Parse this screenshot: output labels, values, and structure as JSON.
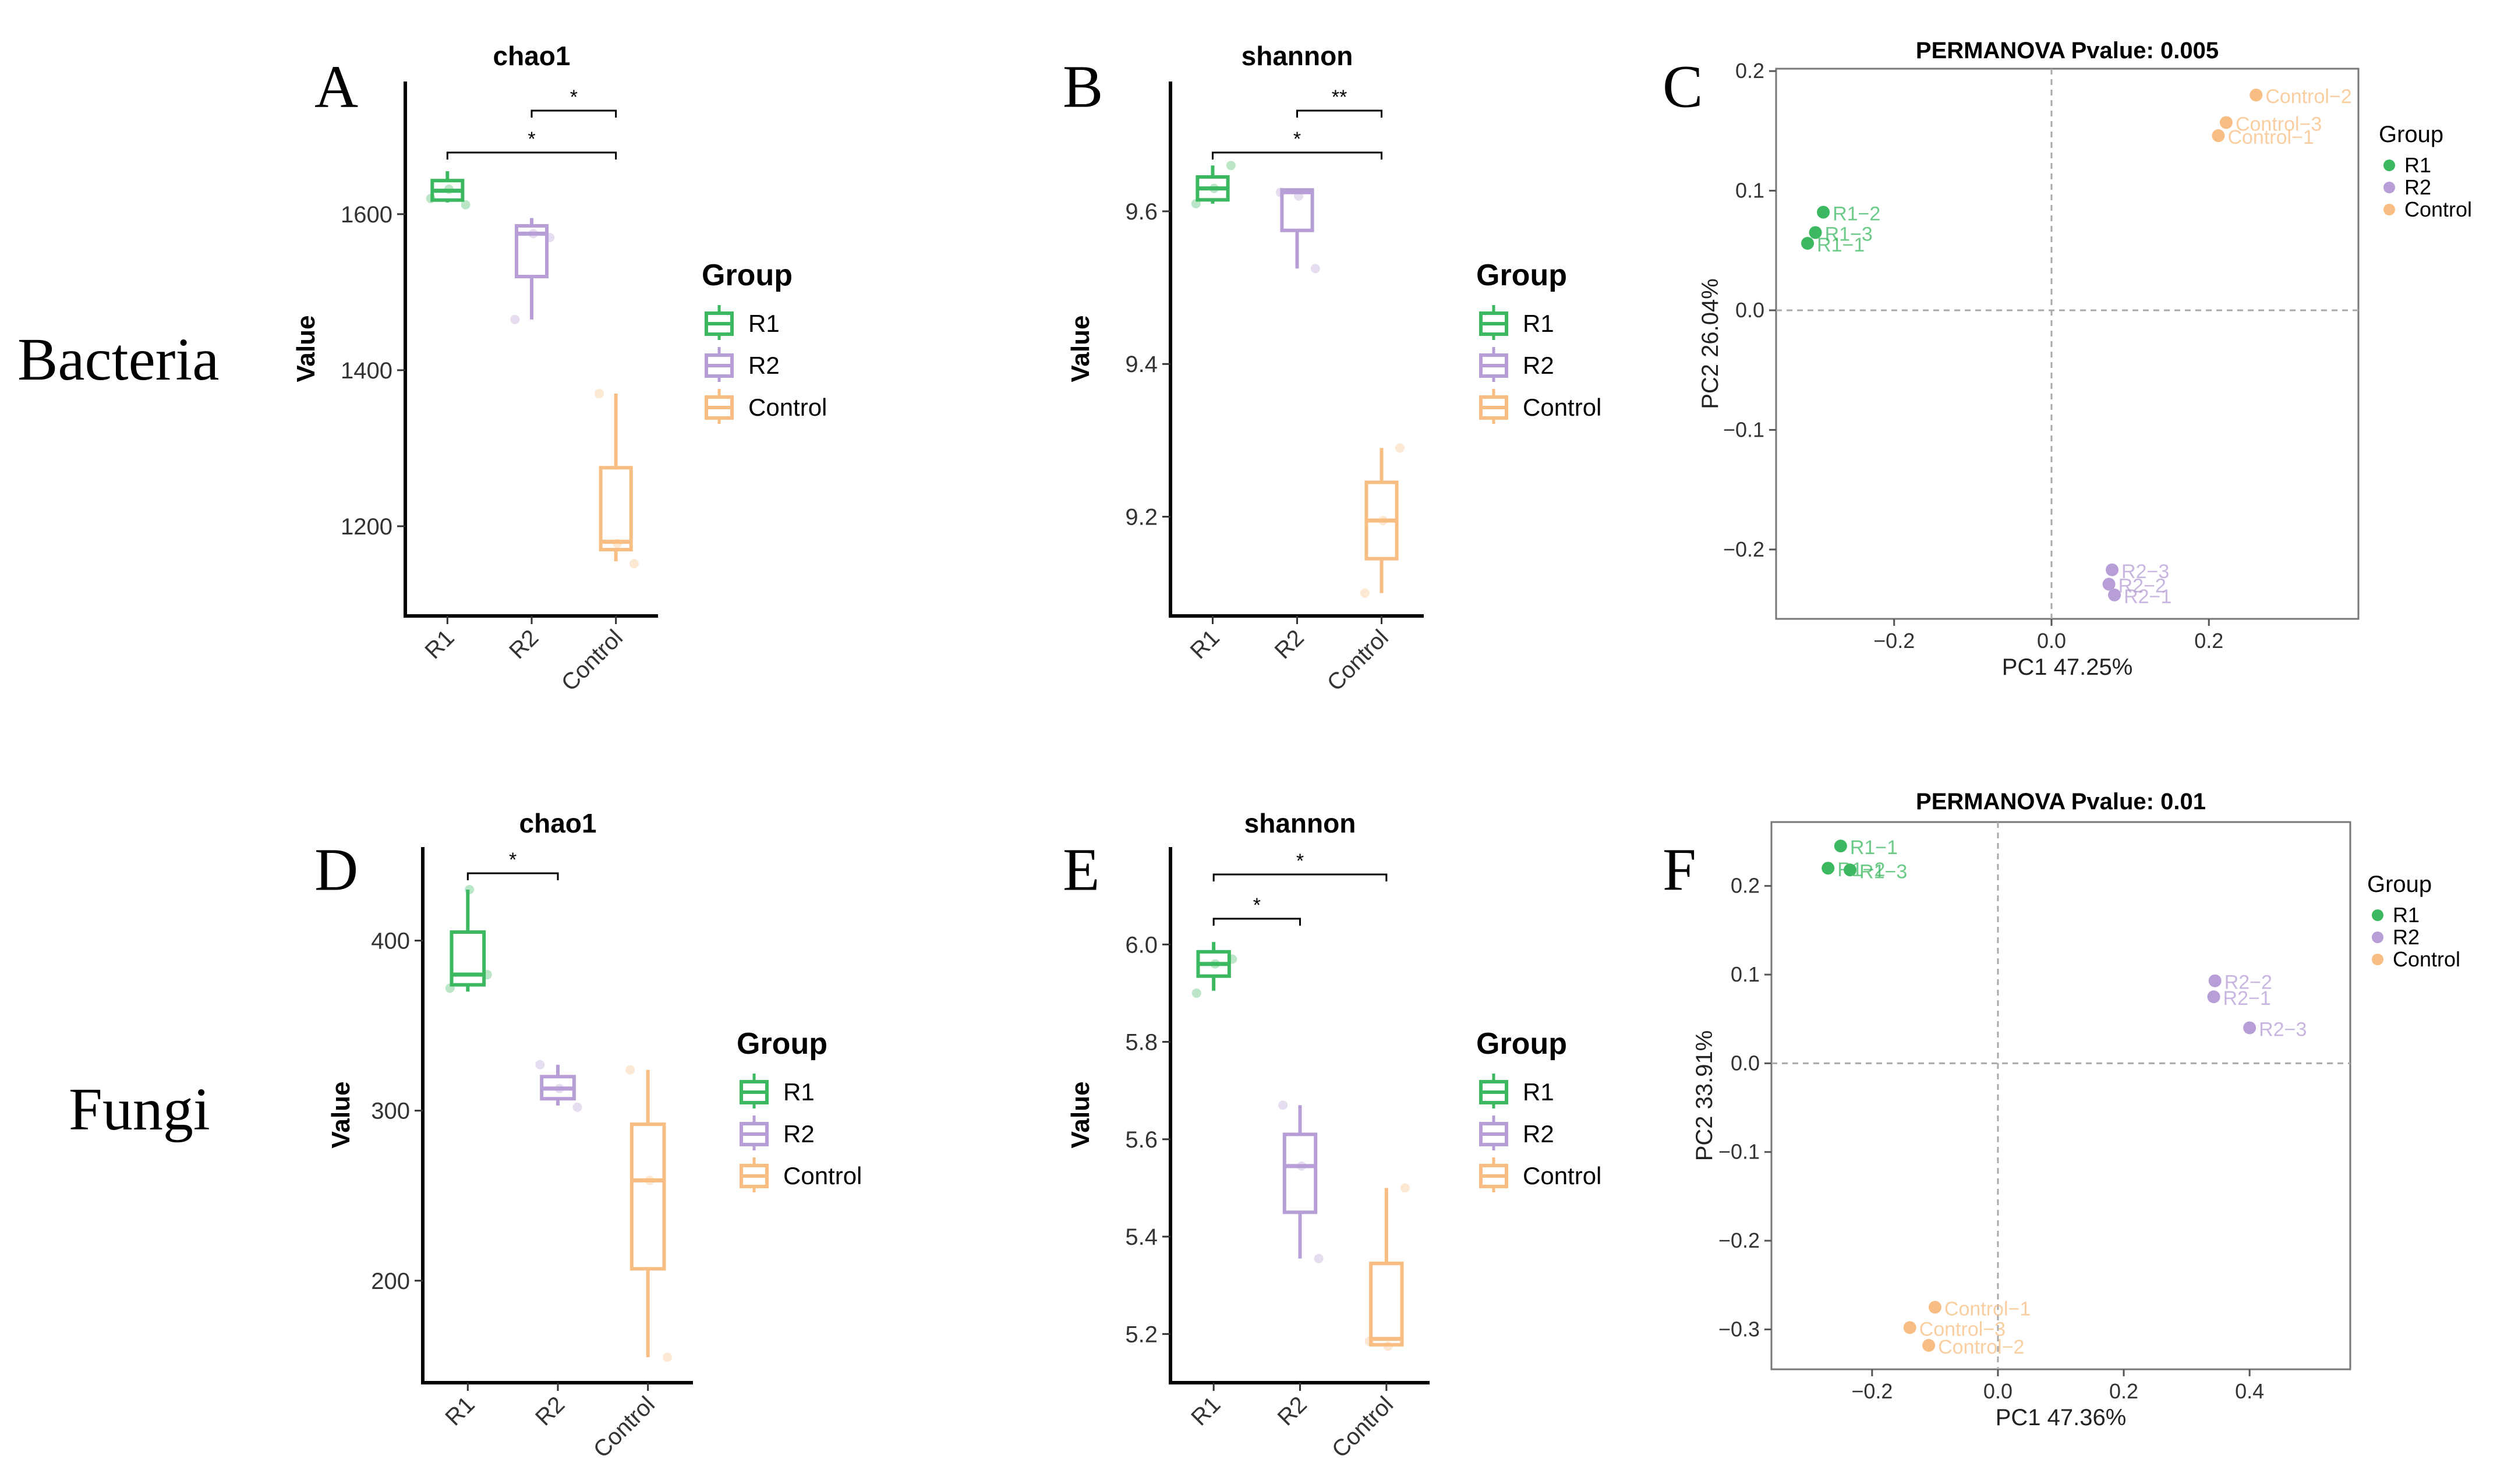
{
  "figure": {
    "row_labels": [
      "Bacteria",
      "Fungi"
    ],
    "group_colors": {
      "R1": "#3CB860",
      "R2": "#B79ED6",
      "Control": "#F7BD82"
    },
    "legend_title": "Group",
    "groups": [
      "R1",
      "R2",
      "Control"
    ]
  },
  "chart_data": [
    {
      "panel": "A",
      "type": "box",
      "title": "chao1",
      "ylabel": "Value",
      "xlabel": "",
      "categories": [
        "R1",
        "R2",
        "Control"
      ],
      "ylim": [
        1085,
        1770
      ],
      "yticks": [
        1200,
        1400,
        1600
      ],
      "boxes": [
        {
          "group": "R1",
          "min": 1615,
          "q1": 1618,
          "median": 1630,
          "q3": 1643,
          "max": 1655
        },
        {
          "group": "R2",
          "min": 1465,
          "q1": 1520,
          "median": 1575,
          "q3": 1585,
          "max": 1595
        },
        {
          "group": "Control",
          "min": 1155,
          "q1": 1170,
          "median": 1180,
          "q3": 1275,
          "max": 1370
        }
      ],
      "points": [
        {
          "group": "R1",
          "values": [
            1620,
            1632,
            1612
          ]
        },
        {
          "group": "R2",
          "values": [
            1465,
            1575,
            1570
          ]
        },
        {
          "group": "Control",
          "values": [
            1370,
            1178,
            1152
          ]
        }
      ],
      "significance": [
        {
          "from": "R2",
          "to": "Control",
          "label": "*"
        },
        {
          "from": "R1",
          "to": "Control",
          "label": "*"
        }
      ]
    },
    {
      "panel": "B",
      "type": "box",
      "title": "shannon",
      "ylabel": "Value",
      "xlabel": "",
      "categories": [
        "R1",
        "R2",
        "Control"
      ],
      "ylim": [
        9.07,
        9.77
      ],
      "yticks": [
        9.2,
        9.4,
        9.6
      ],
      "boxes": [
        {
          "group": "R1",
          "min": 9.61,
          "q1": 9.615,
          "median": 9.63,
          "q3": 9.645,
          "max": 9.66
        },
        {
          "group": "R2",
          "min": 9.525,
          "q1": 9.575,
          "median": 9.625,
          "q3": 9.628,
          "max": 9.63
        },
        {
          "group": "Control",
          "min": 9.1,
          "q1": 9.145,
          "median": 9.195,
          "q3": 9.245,
          "max": 9.29
        }
      ],
      "points": [
        {
          "group": "R1",
          "values": [
            9.61,
            9.63,
            9.66
          ]
        },
        {
          "group": "R2",
          "values": [
            9.625,
            9.62,
            9.525
          ]
        },
        {
          "group": "Control",
          "values": [
            9.1,
            9.195,
            9.29
          ]
        }
      ],
      "significance": [
        {
          "from": "R2",
          "to": "Control",
          "label": "**"
        },
        {
          "from": "R1",
          "to": "Control",
          "label": "*"
        }
      ]
    },
    {
      "panel": "C",
      "type": "scatter",
      "title": "PERMANOVA Pvalue: 0.005",
      "xlabel": "PC1 47.25%",
      "ylabel": "PC2 26.04%",
      "xlim": [
        -0.35,
        0.39
      ],
      "ylim": [
        -0.258,
        0.202
      ],
      "xticks": [
        -0.2,
        0.0,
        0.2
      ],
      "yticks": [
        -0.2,
        -0.1,
        0.0,
        0.1,
        0.2
      ],
      "xtick_labels": [
        "−0.2",
        "0.0",
        "0.2"
      ],
      "ytick_labels": [
        "−0.2",
        "−0.1",
        "0.0",
        "0.1",
        "0.2"
      ],
      "points": [
        {
          "group": "R1",
          "label": "R1−2",
          "x": -0.29,
          "y": 0.082
        },
        {
          "group": "R1",
          "label": "R1−3",
          "x": -0.3,
          "y": 0.065
        },
        {
          "group": "R1",
          "label": "R1−1",
          "x": -0.31,
          "y": 0.056
        },
        {
          "group": "R2",
          "label": "R2−3",
          "x": 0.077,
          "y": -0.217
        },
        {
          "group": "R2",
          "label": "R2−2",
          "x": 0.073,
          "y": -0.229
        },
        {
          "group": "R2",
          "label": "R2−1",
          "x": 0.08,
          "y": -0.238
        },
        {
          "group": "Control",
          "label": "Control−2",
          "x": 0.26,
          "y": 0.18
        },
        {
          "group": "Control",
          "label": "Control−3",
          "x": 0.222,
          "y": 0.157
        },
        {
          "group": "Control",
          "label": "Control−1",
          "x": 0.212,
          "y": 0.146
        }
      ]
    },
    {
      "panel": "D",
      "type": "box",
      "title": "chao1",
      "ylabel": "Value",
      "xlabel": "",
      "categories": [
        "R1",
        "R2",
        "Control"
      ],
      "ylim": [
        140,
        455
      ],
      "yticks": [
        200,
        300,
        400
      ],
      "boxes": [
        {
          "group": "R1",
          "min": 370,
          "q1": 374,
          "median": 380,
          "q3": 405,
          "max": 430
        },
        {
          "group": "R2",
          "min": 303,
          "q1": 307,
          "median": 313,
          "q3": 320,
          "max": 327
        },
        {
          "group": "Control",
          "min": 155,
          "q1": 207,
          "median": 259,
          "q3": 292,
          "max": 324
        }
      ],
      "points": [
        {
          "group": "R1",
          "values": [
            372,
            430,
            380
          ]
        },
        {
          "group": "R2",
          "values": [
            327,
            313,
            302
          ]
        },
        {
          "group": "Control",
          "values": [
            324,
            259,
            155
          ]
        }
      ],
      "significance": [
        {
          "from": "R1",
          "to": "R2",
          "label": "*"
        }
      ]
    },
    {
      "panel": "E",
      "type": "box",
      "title": "shannon",
      "ylabel": "Value",
      "xlabel": "",
      "categories": [
        "R1",
        "R2",
        "Control"
      ],
      "ylim": [
        5.1,
        6.2
      ],
      "yticks": [
        5.2,
        5.4,
        5.6,
        5.8,
        6.0
      ],
      "boxes": [
        {
          "group": "R1",
          "min": 5.905,
          "q1": 5.935,
          "median": 5.96,
          "q3": 5.985,
          "max": 6.005
        },
        {
          "group": "R2",
          "min": 5.355,
          "q1": 5.45,
          "median": 5.545,
          "q3": 5.61,
          "max": 5.67
        },
        {
          "group": "Control",
          "min": 5.175,
          "q1": 5.178,
          "median": 5.19,
          "q3": 5.345,
          "max": 5.5
        }
      ],
      "points": [
        {
          "group": "R1",
          "values": [
            5.9,
            5.96,
            5.97
          ]
        },
        {
          "group": "R2",
          "values": [
            5.67,
            5.545,
            5.355
          ]
        },
        {
          "group": "Control",
          "values": [
            5.185,
            5.175,
            5.5
          ]
        }
      ],
      "significance": [
        {
          "from": "R1",
          "to": "R2",
          "label": "*"
        },
        {
          "from": "R1",
          "to": "Control",
          "label": "*"
        }
      ]
    },
    {
      "panel": "F",
      "type": "scatter",
      "title": "PERMANOVA Pvalue: 0.01",
      "xlabel": "PC1 47.36%",
      "ylabel": "PC2 33.91%",
      "xlim": [
        -0.36,
        0.56
      ],
      "ylim": [
        -0.345,
        0.272
      ],
      "xticks": [
        -0.2,
        0.0,
        0.2,
        0.4
      ],
      "yticks": [
        -0.3,
        -0.2,
        -0.1,
        0.0,
        0.1,
        0.2
      ],
      "xtick_labels": [
        "−0.2",
        "0.0",
        "0.2",
        "0.4"
      ],
      "ytick_labels": [
        "−0.3",
        "−0.2",
        "−0.1",
        "0.0",
        "0.1",
        "0.2"
      ],
      "points": [
        {
          "group": "R1",
          "label": "R1−1",
          "x": -0.25,
          "y": 0.245
        },
        {
          "group": "R1",
          "label": "R1−2",
          "x": -0.27,
          "y": 0.22
        },
        {
          "group": "R1",
          "label": "R1−3",
          "x": -0.235,
          "y": 0.218
        },
        {
          "group": "R2",
          "label": "R2−2",
          "x": 0.345,
          "y": 0.093
        },
        {
          "group": "R2",
          "label": "R2−1",
          "x": 0.343,
          "y": 0.075
        },
        {
          "group": "R2",
          "label": "R2−3",
          "x": 0.4,
          "y": 0.04
        },
        {
          "group": "Control",
          "label": "Control−1",
          "x": -0.1,
          "y": -0.275
        },
        {
          "group": "Control",
          "label": "Control−3",
          "x": -0.14,
          "y": -0.298
        },
        {
          "group": "Control",
          "label": "Control−2",
          "x": -0.11,
          "y": -0.318
        }
      ]
    }
  ]
}
